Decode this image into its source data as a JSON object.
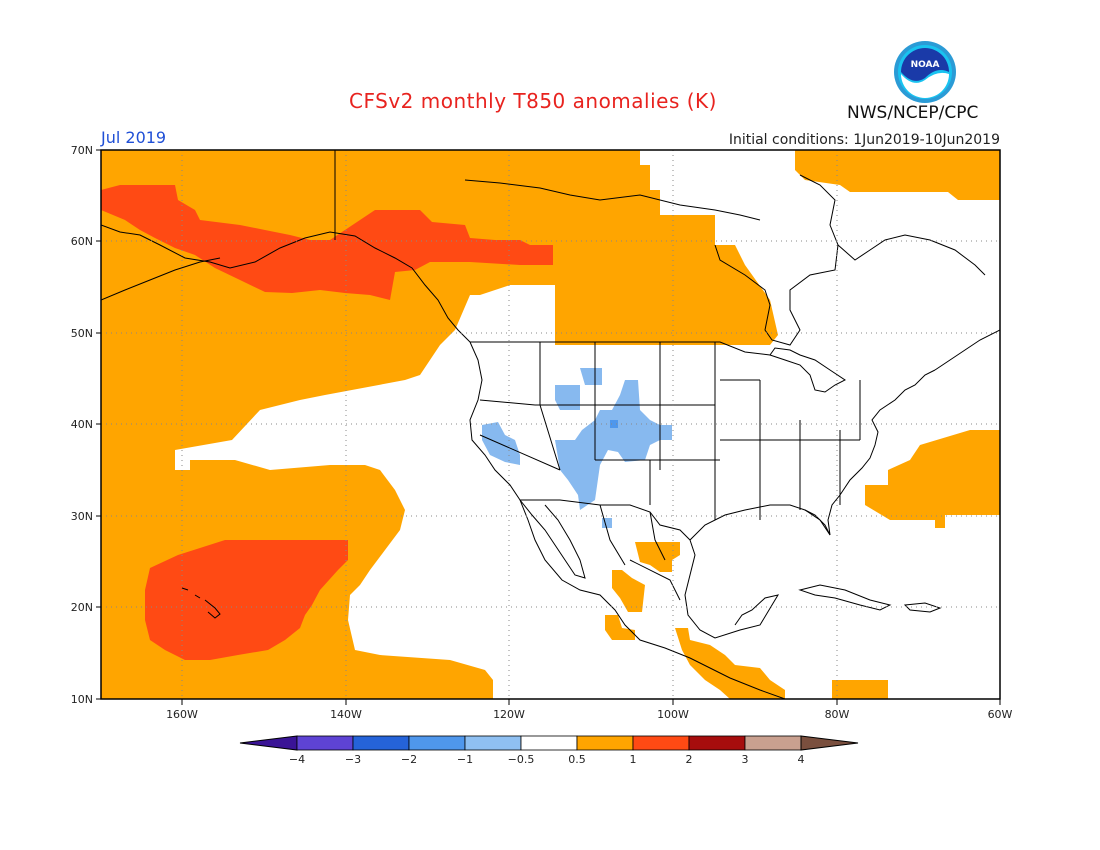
{
  "header": {
    "title": "CFSv2 monthly T850 anomalies (K)",
    "month": "Jul 2019",
    "initial_conditions": "Initial conditions: 1Jun2019-10Jun2019",
    "agency": "NWS/NCEP/CPC",
    "logo_text": "NOAA"
  },
  "map": {
    "projection": "lat-lon",
    "lon_range": [
      -170,
      -60
    ],
    "lat_range": [
      10,
      70
    ],
    "lat_ticks": [
      "10N",
      "20N",
      "30N",
      "40N",
      "50N",
      "60N",
      "70N"
    ],
    "lon_ticks": [
      "160W",
      "140W",
      "120W",
      "100W",
      "80W",
      "60W"
    ],
    "gridlines": "dotted"
  },
  "colorbar": {
    "labels": [
      "-4",
      "-3",
      "-2",
      "-1",
      "-0.5",
      "0.5",
      "1",
      "2",
      "3",
      "4"
    ],
    "colors": [
      "#3a1496",
      "#5e43d4",
      "#2563d9",
      "#4f97ec",
      "#8fc0f2",
      "#ffffff",
      "#ffa500",
      "#ff4a14",
      "#a60d0d",
      "#c9a08f",
      "#7a4f3e"
    ]
  },
  "colors": {
    "orange": "#ffa500",
    "red": "#ff4a14",
    "lightblue": "#87b9ef",
    "blue": "#4f97ec",
    "title": "#e8231f",
    "month": "#1f4fd6"
  }
}
